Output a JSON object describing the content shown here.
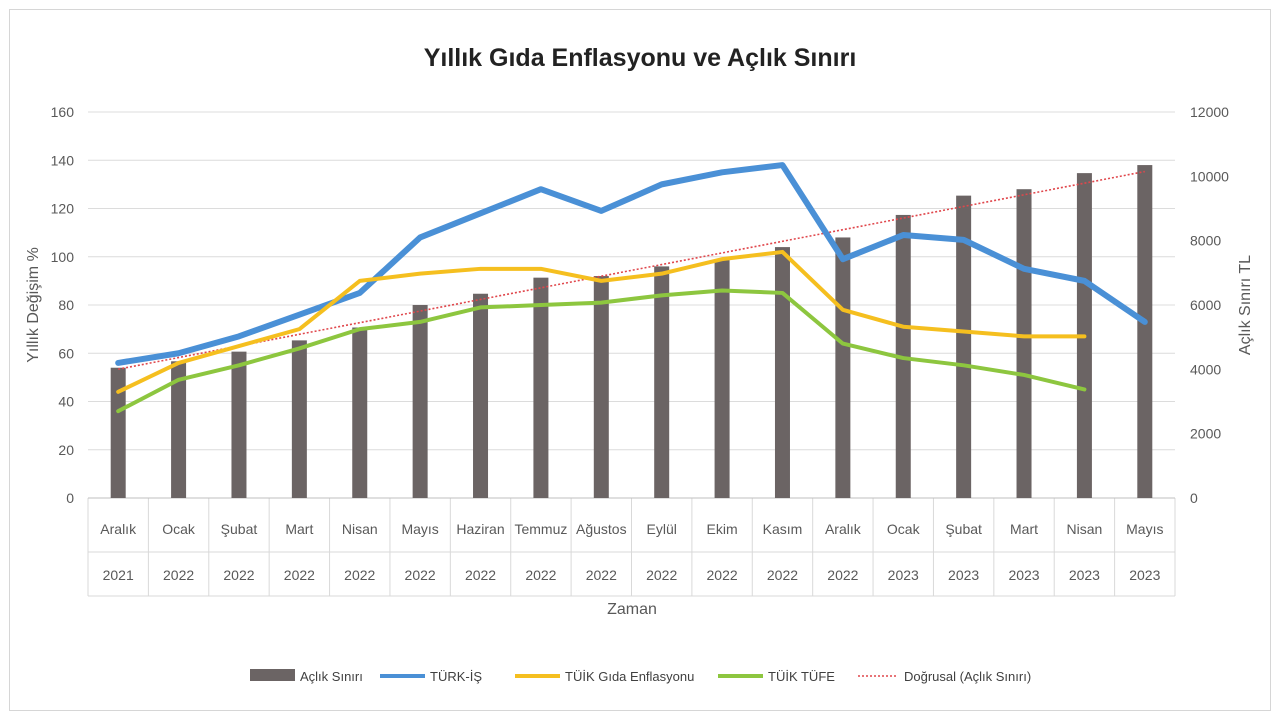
{
  "chart_data": {
    "type": "bar",
    "title": "Yıllık Gıda Enflasyonu ve Açlık Sınırı",
    "xlabel": "Zaman",
    "ylabel": "Yıllık Değişim %",
    "y2label": "Açlık Sınırı TL",
    "ylim": [
      0,
      160
    ],
    "y_ticks": [
      0,
      20,
      40,
      60,
      80,
      100,
      120,
      140,
      160
    ],
    "y2lim": [
      0,
      12000
    ],
    "y2_ticks": [
      0,
      2000,
      4000,
      6000,
      8000,
      10000,
      12000
    ],
    "categories": [
      {
        "month": "Aralık",
        "year": "2021"
      },
      {
        "month": "Ocak",
        "year": "2022"
      },
      {
        "month": "Şubat",
        "year": "2022"
      },
      {
        "month": "Mart",
        "year": "2022"
      },
      {
        "month": "Nisan",
        "year": "2022"
      },
      {
        "month": "Mayıs",
        "year": "2022"
      },
      {
        "month": "Haziran",
        "year": "2022"
      },
      {
        "month": "Temmuz",
        "year": "2022"
      },
      {
        "month": "Ağustos",
        "year": "2022"
      },
      {
        "month": "Eylül",
        "year": "2022"
      },
      {
        "month": "Ekim",
        "year": "2022"
      },
      {
        "month": "Kasım",
        "year": "2022"
      },
      {
        "month": "Aralık",
        "year": "2022"
      },
      {
        "month": "Ocak",
        "year": "2023"
      },
      {
        "month": "Şubat",
        "year": "2023"
      },
      {
        "month": "Mart",
        "year": "2023"
      },
      {
        "month": "Nisan",
        "year": "2023"
      },
      {
        "month": "Mayıs",
        "year": "2023"
      }
    ],
    "grid": true,
    "legend_position": "bottom",
    "series": [
      {
        "name": "Açlık Sınırı",
        "type": "bar",
        "axis": "right",
        "color": "#6b6464",
        "values": [
          4050,
          4250,
          4550,
          4900,
          5300,
          6000,
          6350,
          6850,
          6900,
          7200,
          7400,
          7800,
          8100,
          8800,
          9400,
          9600,
          10100,
          10350
        ]
      },
      {
        "name": "TÜRK-İŞ",
        "type": "line",
        "axis": "left",
        "color": "#4a90d6",
        "values": [
          56,
          60,
          67,
          76,
          85,
          108,
          118,
          128,
          119,
          130,
          135,
          138,
          99,
          109,
          107,
          95,
          90,
          73
        ]
      },
      {
        "name": "TÜİK Gıda Enflasyonu",
        "type": "line",
        "axis": "left",
        "color": "#f5bf1f",
        "values": [
          44,
          56,
          63,
          70,
          90,
          93,
          95,
          95,
          90,
          93,
          99,
          102,
          78,
          71,
          69,
          67,
          67,
          null
        ]
      },
      {
        "name": "TÜİK TÜFE",
        "type": "line",
        "axis": "left",
        "color": "#8dc63f",
        "values": [
          36,
          49,
          55,
          62,
          70,
          73,
          79,
          80,
          81,
          84,
          86,
          85,
          64,
          58,
          55,
          51,
          45,
          null
        ]
      },
      {
        "name": "Doğrusal (Açlık Sınırı)",
        "type": "trendline",
        "axis": "right",
        "color": "#e0474c",
        "values": [
          4004,
          4366,
          4727,
          5089,
          5450,
          5811,
          6173,
          6534,
          6896,
          7257,
          7619,
          7980,
          8341,
          8703,
          9064,
          9426,
          9787,
          10149
        ]
      }
    ]
  }
}
